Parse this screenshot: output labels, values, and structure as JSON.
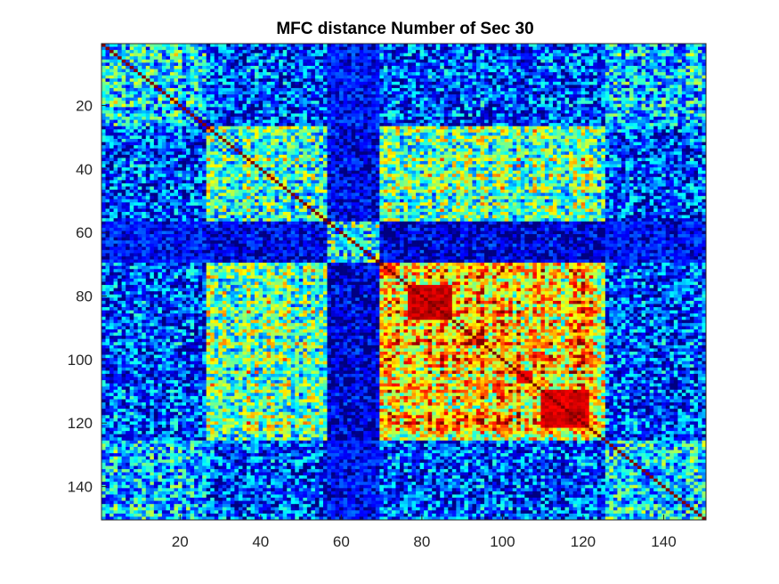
{
  "chart_data": {
    "type": "heatmap",
    "title": "MFC distance Number of Sec 30",
    "xlabel": "",
    "ylabel": "",
    "size": [
      150,
      150
    ],
    "xlim": [
      0.5,
      150.5
    ],
    "ylim": [
      0.5,
      150.5
    ],
    "y_reversed": true,
    "colormap": "jet",
    "colorbar": false,
    "grid": false,
    "x_ticks": [
      20,
      40,
      60,
      80,
      100,
      120,
      140
    ],
    "y_ticks": [
      20,
      40,
      60,
      80,
      100,
      120,
      140
    ],
    "block_boundaries": [
      1,
      27,
      57,
      70,
      126,
      151
    ],
    "block_levels": [
      [
        0.45,
        0.25,
        0.3,
        0.25,
        0.4
      ],
      [
        0.25,
        0.55,
        0.15,
        0.6,
        0.25
      ],
      [
        0.3,
        0.15,
        0.55,
        0.1,
        0.25
      ],
      [
        0.25,
        0.6,
        0.1,
        0.85,
        0.25
      ],
      [
        0.4,
        0.25,
        0.25,
        0.25,
        0.45
      ]
    ],
    "low_value_bands": [
      [
        57,
        69
      ]
    ],
    "hot_spots": [
      {
        "r0": 77,
        "r1": 87,
        "c0": 77,
        "c1": 87,
        "v": 0.97
      },
      {
        "r0": 110,
        "r1": 121,
        "c0": 110,
        "c1": 121,
        "v": 0.95
      },
      {
        "r0": 104,
        "r1": 107,
        "c0": 104,
        "c1": 107,
        "v": 0.95
      }
    ]
  }
}
